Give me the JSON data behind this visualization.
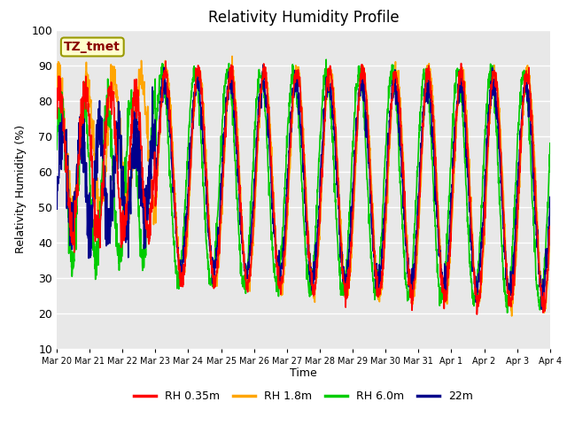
{
  "title": "Relativity Humidity Profile",
  "xlabel": "Time",
  "ylabel": "Relativity Humidity (%)",
  "ylim": [
    10,
    100
  ],
  "yticks": [
    10,
    20,
    30,
    40,
    50,
    60,
    70,
    80,
    90,
    100
  ],
  "annotation_text": "TZ_tmet",
  "annotation_color": "#8B0000",
  "annotation_bg": "#FFFFCC",
  "annotation_border": "#999900",
  "line_colors": {
    "RH 0.35m": "#FF0000",
    "RH 1.8m": "#FFA500",
    "RH 6.0m": "#00CC00",
    "22m": "#00008B"
  },
  "legend_labels": [
    "RH 0.35m",
    "RH 1.8m",
    "RH 6.0m",
    "22m"
  ],
  "bg_color": "#FFFFFF",
  "plot_bg_color": "#E8E8E8",
  "grid_color": "#FFFFFF",
  "line_width": 1.2
}
